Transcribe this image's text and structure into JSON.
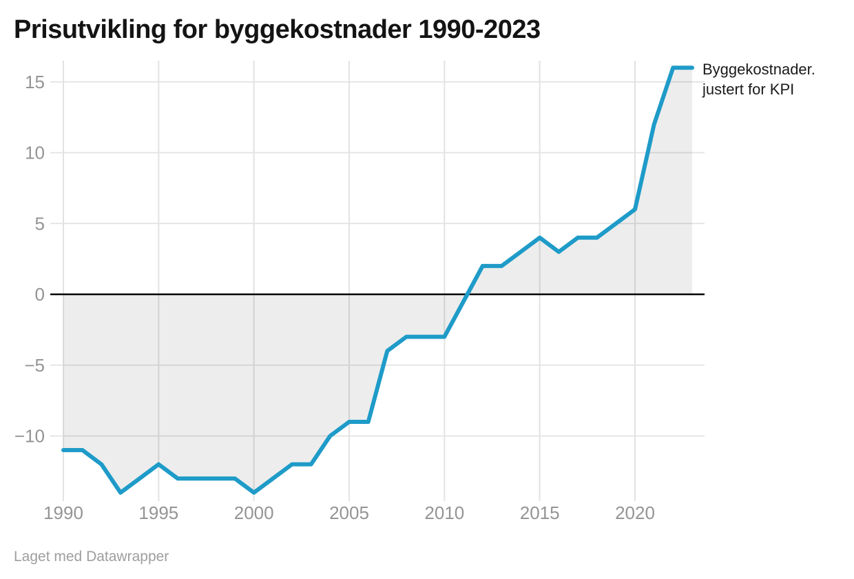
{
  "header": {
    "title": "Prisutvikling for byggekostnader 1990-2023"
  },
  "legend": {
    "line1": "Byggekostnader.",
    "line2": "justert for KPI"
  },
  "footer": {
    "text": "Laget med Datawrapper"
  },
  "colors": {
    "line": "#1e9bc8",
    "area_fill": "#ededed",
    "gridline": "#e2e2e2",
    "zero_line": "#000000",
    "tick_text": "#949494",
    "title_text": "#141414",
    "legend_text": "#1a1a1a",
    "footer_text": "#9e9e9e",
    "background": "#ffffff"
  },
  "chart_data": {
    "type": "area",
    "title": "Prisutvikling for byggekostnader 1990-2023",
    "x": [
      1990,
      1991,
      1992,
      1993,
      1994,
      1995,
      1996,
      1997,
      1998,
      1999,
      2000,
      2001,
      2002,
      2003,
      2004,
      2005,
      2006,
      2007,
      2008,
      2009,
      2010,
      2011,
      2012,
      2013,
      2014,
      2015,
      2016,
      2017,
      2018,
      2019,
      2020,
      2021,
      2022,
      2023
    ],
    "series": [
      {
        "name": "Byggekostnader. justert for KPI",
        "values": [
          -11,
          -11,
          -12,
          -14,
          -13,
          -12,
          -13,
          -13,
          -13,
          -13,
          -14,
          -13,
          -12,
          -12,
          -10,
          -9,
          -9,
          -4,
          -3,
          -3,
          -3,
          -0.5,
          2,
          2,
          3,
          4,
          3,
          4,
          4,
          5,
          6,
          12,
          16,
          16
        ]
      }
    ],
    "xlabel": "",
    "ylabel": "",
    "xlim": [
      1990,
      2023
    ],
    "ylim": [
      -14.7,
      16.5
    ],
    "baseline": 0,
    "grid": true,
    "legend_position": "right of line end",
    "xtick_values": [
      1990,
      1995,
      2000,
      2005,
      2010,
      2015,
      2020
    ],
    "xtick_labels": [
      "1990",
      "1995",
      "2000",
      "2005",
      "2010",
      "2015",
      "2020"
    ],
    "ytick_values": [
      15,
      10,
      5,
      0,
      -5,
      -10
    ],
    "ytick_labels": [
      "15",
      "10",
      "5",
      "0",
      "−5",
      "−10"
    ]
  }
}
